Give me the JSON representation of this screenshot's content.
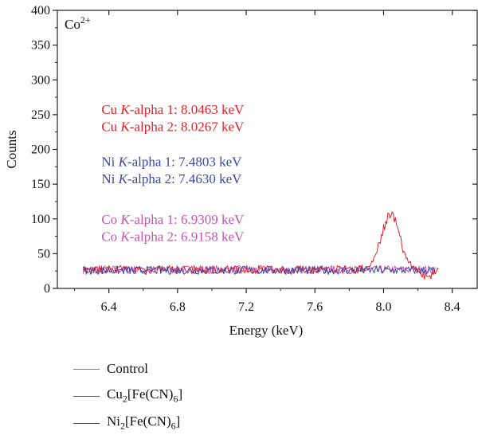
{
  "chart_data": {
    "type": "line",
    "annotation_title": "Co",
    "annotation_title_sup": "2+",
    "xlabel": "Energy (keV)",
    "ylabel": "Counts",
    "xlim": [
      6.1,
      8.55
    ],
    "ylim": [
      0,
      400
    ],
    "x_ticks": [
      6.4,
      6.8,
      7.2,
      7.6,
      8.0,
      8.4
    ],
    "x_tick_labels": [
      "6.4",
      "6.8",
      "7.2",
      "7.6",
      "8.0",
      "8.4"
    ],
    "y_ticks": [
      0,
      50,
      100,
      150,
      200,
      250,
      300,
      350,
      400
    ],
    "y_tick_labels": [
      "0",
      "50",
      "100",
      "150",
      "200",
      "250",
      "300",
      "350",
      "400"
    ],
    "grid": false,
    "legend_position": "bottom-left",
    "annotations": [
      {
        "prefix": "Cu ",
        "italic": "K",
        "suffix": "-alpha 1: 8.0463 keV",
        "color": "#e8202a",
        "y": 258
      },
      {
        "prefix": "Cu ",
        "italic": "K",
        "suffix": "-alpha 2: 8.0267 keV",
        "color": "#e8202a",
        "y": 233
      },
      {
        "prefix": "Ni ",
        "italic": "K",
        "suffix": "-alpha 1: 7.4803 keV",
        "color": "#3b48a6",
        "y": 183
      },
      {
        "prefix": "Ni ",
        "italic": "K",
        "suffix": "-alpha 2: 7.4630 keV",
        "color": "#3b48a6",
        "y": 158
      },
      {
        "prefix": "Co ",
        "italic": "K",
        "suffix": "-alpha 1: 6.9309 keV",
        "color": "#c455b2",
        "y": 100
      },
      {
        "prefix": "Co ",
        "italic": "K",
        "suffix": "-alpha 2: 6.9158 keV",
        "color": "#c455b2",
        "y": 75
      }
    ],
    "series": [
      {
        "legend": [
          "Control"
        ],
        "color": "#c455b2",
        "x_range": [
          6.25,
          8.3
        ],
        "baseline": 27,
        "noise": 6,
        "peaks": []
      },
      {
        "legend": [
          "Cu",
          "2",
          "[Fe(CN)",
          "6",
          "]"
        ],
        "color": "#e8202a",
        "x_range": [
          6.25,
          8.32
        ],
        "baseline": 27,
        "noise": 6,
        "peaks": [
          {
            "center": 8.04,
            "height": 78,
            "width": 0.055
          },
          {
            "center": 8.25,
            "height": -10,
            "width": 0.03
          }
        ]
      },
      {
        "legend": [
          "Ni",
          "2",
          "[Fe(CN)",
          "6",
          "]"
        ],
        "color": "#3b48a6",
        "x_range": [
          6.25,
          8.3
        ],
        "baseline": 26,
        "noise": 6,
        "peaks": []
      }
    ]
  }
}
